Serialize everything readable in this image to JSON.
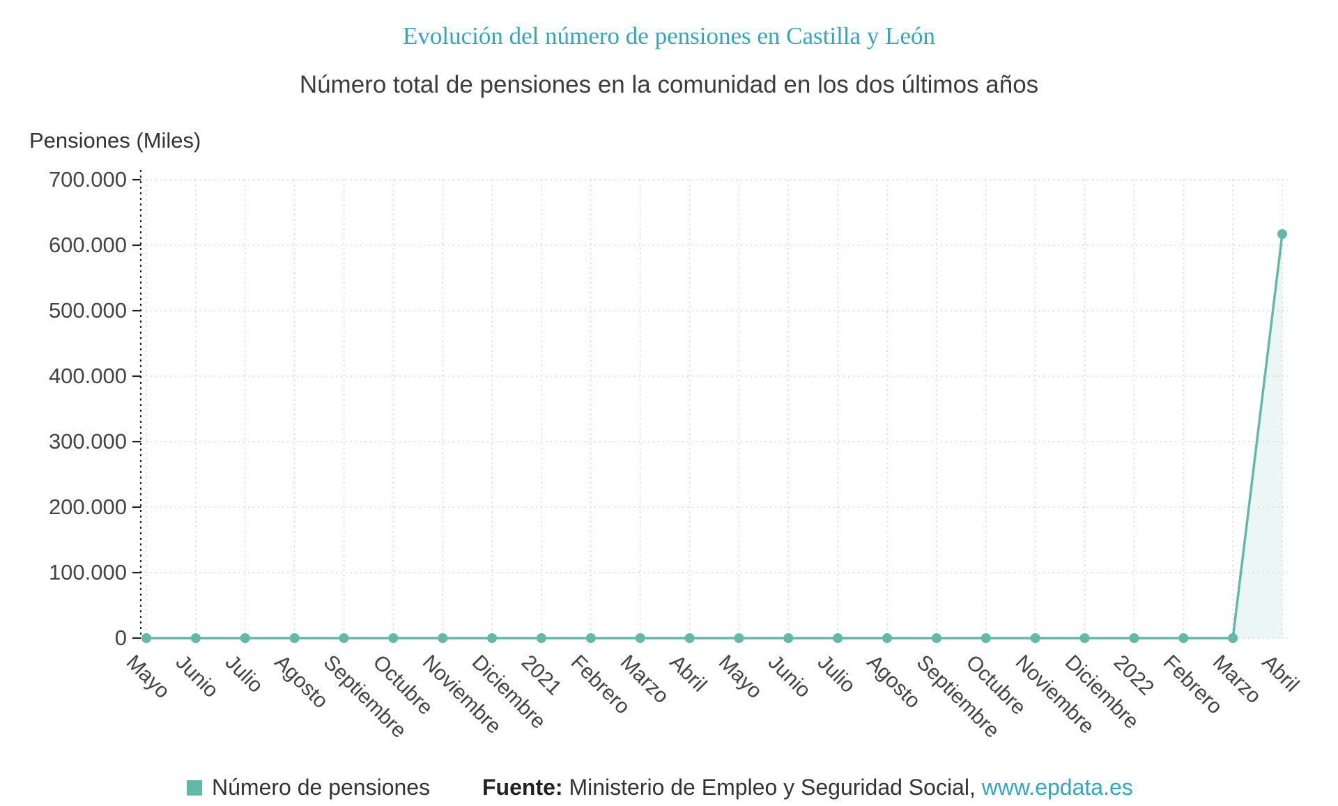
{
  "title": "Evolución del número de pensiones en Castilla y León",
  "subtitle": "Número total de pensiones en la comunidad en los dos últimos años",
  "colors": {
    "accent": "#63b8a9",
    "title": "#2fa8bf",
    "link": "#2fa8bf",
    "grid": "#d8d6e4",
    "axis": "#222222"
  },
  "chart_data": {
    "type": "line",
    "title": "Evolución del número de pensiones en Castilla y León",
    "subtitle": "Número total de pensiones en la comunidad en los dos últimos años",
    "xlabel": "",
    "ylabel": "Pensiones (Miles)",
    "ylim": [
      0,
      700000
    ],
    "grid": true,
    "legend_position": "bottom",
    "categories": [
      "Mayo",
      "Junio",
      "Julio",
      "Agosto",
      "Septiembre",
      "Octubre",
      "Noviembre",
      "Diciembre",
      "2021",
      "Febrero",
      "Marzo",
      "Abril",
      "Mayo",
      "Junio",
      "Julio",
      "Agosto",
      "Septiembre",
      "Octubre",
      "Noviembre",
      "Diciembre",
      "2022",
      "Febrero",
      "Marzo",
      "Abril"
    ],
    "series": [
      {
        "name": "Número de pensiones",
        "values": [
          0,
          0,
          0,
          0,
          0,
          0,
          0,
          0,
          0,
          0,
          0,
          0,
          0,
          0,
          0,
          0,
          0,
          0,
          0,
          0,
          0,
          0,
          0,
          617000
        ]
      }
    ],
    "yticks": [
      {
        "value": 0,
        "label": "0"
      },
      {
        "value": 100000,
        "label": "100.000"
      },
      {
        "value": 200000,
        "label": "200.000"
      },
      {
        "value": 300000,
        "label": "300.000"
      },
      {
        "value": 400000,
        "label": "400.000"
      },
      {
        "value": 500000,
        "label": "500.000"
      },
      {
        "value": 600000,
        "label": "600.000"
      },
      {
        "value": 700000,
        "label": "700.000"
      }
    ]
  },
  "legend": {
    "label": "Número de pensiones"
  },
  "footer": {
    "source_label": "Fuente:",
    "source_text": " Ministerio de Empleo y Seguridad Social, ",
    "source_link": "www.epdata.es"
  }
}
